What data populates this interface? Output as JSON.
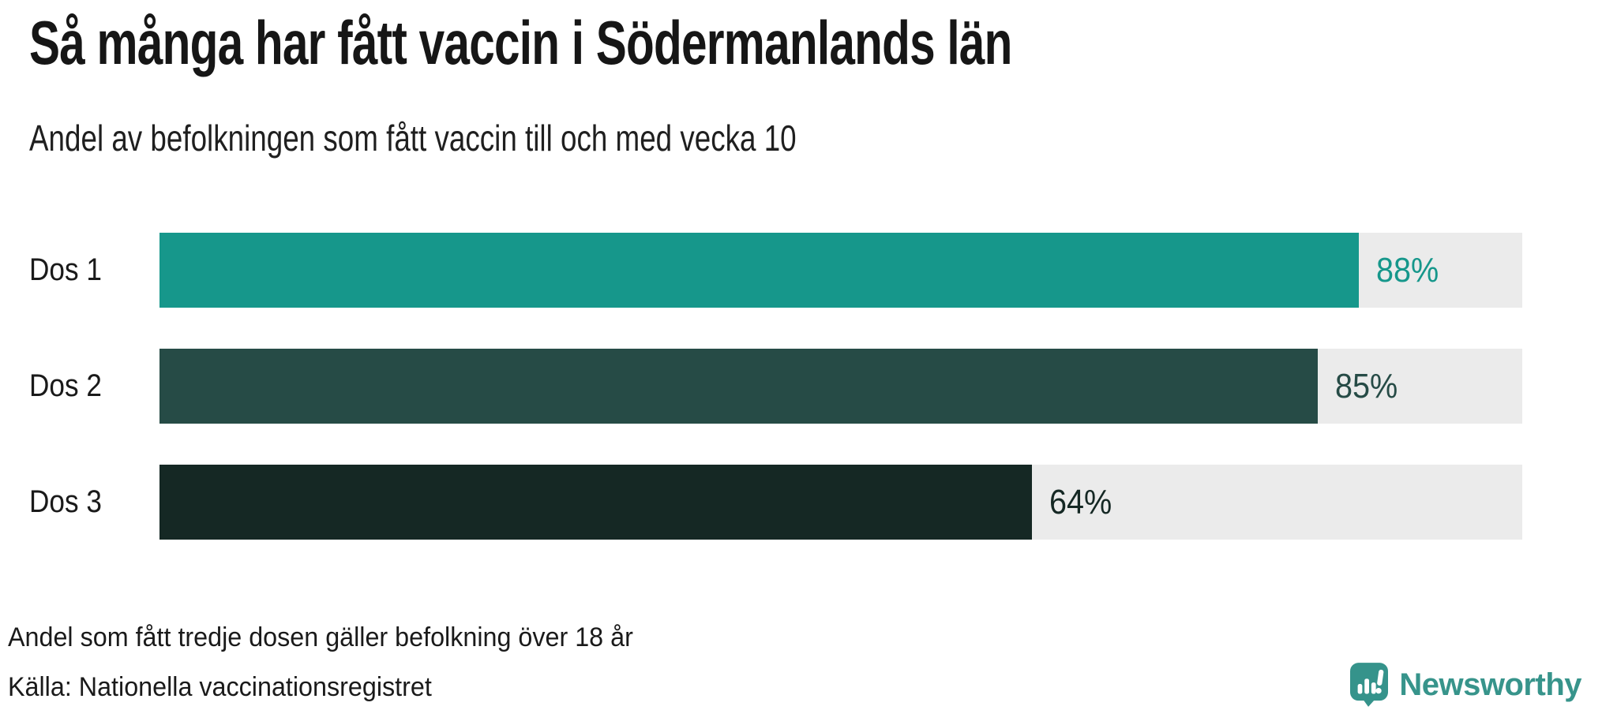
{
  "header": {
    "title": "Så många har fått vaccin i Södermanlands län",
    "subtitle": "Andel av befolkningen som fått vaccin till och med vecka 10"
  },
  "chart_data": {
    "type": "bar",
    "orientation": "horizontal",
    "title": "Så många har fått vaccin i Södermanlands län",
    "subtitle": "Andel av befolkningen som fått vaccin till och med vecka 10",
    "categories": [
      "Dos 1",
      "Dos 2",
      "Dos 3"
    ],
    "values": [
      88,
      85,
      64
    ],
    "value_labels": [
      "88%",
      "85%",
      "64%"
    ],
    "unit": "%",
    "xlim": [
      0,
      100
    ],
    "grid": false,
    "legend": false,
    "bar_colors": [
      "#16978B",
      "#264B46",
      "#152824"
    ],
    "value_label_colors": [
      "#16978B",
      "#264B46",
      "#152824"
    ],
    "track_color": "#EBEBEB"
  },
  "footer": {
    "footnote": "Andel som fått tredje dosen gäller befolkning över 18 år",
    "source": "Källa: Nationella vaccinationsregistret"
  },
  "branding": {
    "name": "Newsworthy",
    "icon": "speech-bubble-bar-chart-icon",
    "icon_color": "#35938B",
    "text_color": "#37948B"
  },
  "colors": {
    "background": "#FFFFFF",
    "text": "#1A1A1A"
  }
}
